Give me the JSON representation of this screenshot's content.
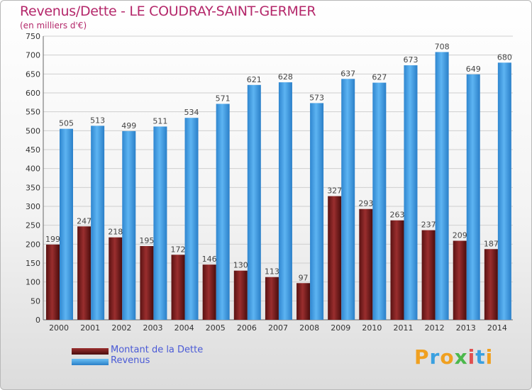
{
  "title": "Revenus/Dette - LE COUDRAY-SAINT-GERMER",
  "subtitle": "(en milliers d'€)",
  "logo": {
    "text": "Proxiti",
    "letters": [
      "P",
      "r",
      "o",
      "x",
      "i",
      "t",
      "i"
    ]
  },
  "colors": {
    "title": "#b4276a",
    "dette": "#7a1f1f",
    "revenus": "#3f9be0",
    "legend_text": "#4a5ad6"
  },
  "chart_data": {
    "type": "bar",
    "categories": [
      "2000",
      "2001",
      "2002",
      "2003",
      "2004",
      "2005",
      "2006",
      "2007",
      "2008",
      "2009",
      "2010",
      "2011",
      "2012",
      "2013",
      "2014"
    ],
    "series": [
      {
        "name": "Montant de la Dette",
        "values": [
          199,
          247,
          218,
          195,
          172,
          146,
          130,
          113,
          97,
          327,
          293,
          263,
          237,
          209,
          187
        ]
      },
      {
        "name": "Revenus",
        "values": [
          505,
          513,
          499,
          511,
          534,
          571,
          621,
          628,
          573,
          637,
          627,
          673,
          708,
          649,
          680
        ]
      }
    ],
    "ylim": [
      0,
      750
    ],
    "yticks": [
      0,
      50,
      100,
      150,
      200,
      250,
      300,
      350,
      400,
      450,
      500,
      550,
      600,
      650,
      700,
      750
    ],
    "grid": true,
    "legend_position": "bottom-left"
  }
}
